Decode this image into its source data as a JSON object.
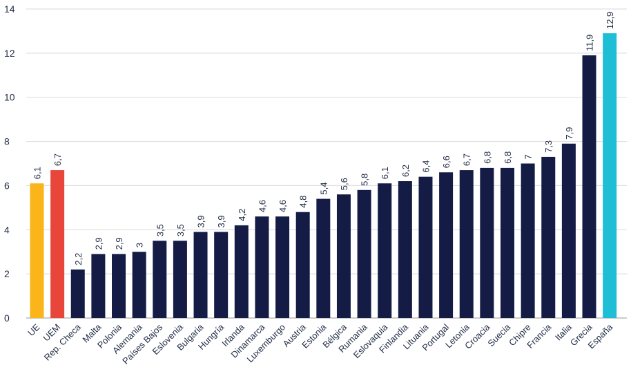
{
  "chart_data": {
    "type": "bar",
    "title": "",
    "xlabel": "",
    "ylabel": "",
    "ylim": [
      0,
      14
    ],
    "yticks": [
      0,
      2,
      4,
      6,
      8,
      10,
      12,
      14
    ],
    "grid": true,
    "categories": [
      "UE",
      "UEM",
      "Rep. Checa",
      "Malta",
      "Polonia",
      "Alemania",
      "Países Bajos",
      "Eslovenia",
      "Bulgaria",
      "Hungría",
      "Irlanda",
      "Dinamarca",
      "Luxemburgo",
      "Austria",
      "Estonia",
      "Bélgica",
      "Rumania",
      "Eslovaquia",
      "Finlandia",
      "Lituania",
      "Portugal",
      "Letonia",
      "Croacia",
      "Suecia",
      "Chipre",
      "Francia",
      "Italia",
      "Grecia",
      "España"
    ],
    "values": [
      6.1,
      6.7,
      2.2,
      2.9,
      2.9,
      3,
      3.5,
      3.5,
      3.9,
      3.9,
      4.2,
      4.6,
      4.6,
      4.8,
      5.4,
      5.6,
      5.8,
      6.1,
      6.2,
      6.4,
      6.6,
      6.7,
      6.8,
      6.8,
      7,
      7.3,
      7.9,
      11.9,
      12.9
    ],
    "value_labels": [
      "6,1",
      "6,7",
      "2,2",
      "2,9",
      "2,9",
      "3",
      "3,5",
      "3,5",
      "3,9",
      "3,9",
      "4,2",
      "4,6",
      "4,6",
      "4,8",
      "5,4",
      "5,6",
      "5,8",
      "6,1",
      "6,2",
      "6,4",
      "6,6",
      "6,7",
      "6,8",
      "6,8",
      "7",
      "7,3",
      "7,9",
      "11,9",
      "12,9"
    ],
    "colors": {
      "UE": "#fbb41a",
      "UEM": "#e8463a",
      "España": "#1ebfd6",
      "default": "#141c45"
    }
  }
}
